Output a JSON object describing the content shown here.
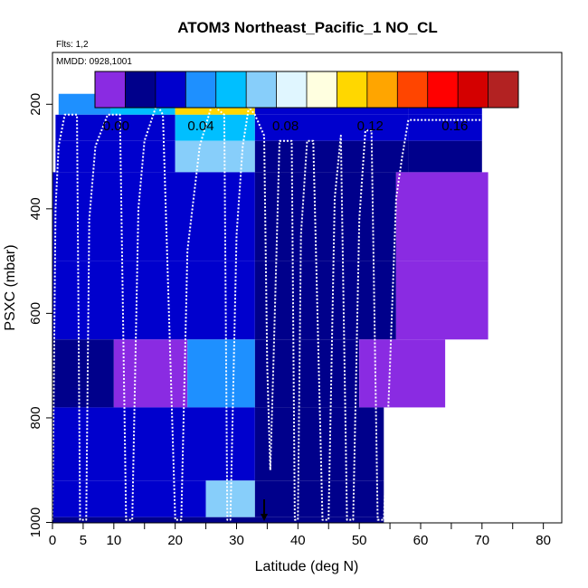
{
  "chart_data": {
    "type": "heatmap",
    "title": "ATOM3 Northeast_Pacific_1 NO_CL",
    "annotations": [
      "Flts: 1,2",
      "MMDD: 0928,1001"
    ],
    "xlabel": "Latitude (deg N)",
    "ylabel": "PSXC (mbar)",
    "xlim": [
      0,
      83
    ],
    "ylim": [
      1000,
      100
    ],
    "x_ticks": [
      0,
      5,
      10,
      20,
      30,
      40,
      50,
      60,
      70,
      80
    ],
    "y_ticks": [
      200,
      400,
      600,
      800,
      1000
    ],
    "colorbar": {
      "range": [
        -0.01,
        0.19
      ],
      "tick_values": [
        0.0,
        0.04,
        0.08,
        0.12,
        0.16
      ],
      "tick_labels": [
        "0.00",
        "0.04",
        "0.08",
        "0.12",
        "0.16"
      ],
      "colors": [
        "#8a2be2",
        "#00008b",
        "#0000cd",
        "#1e90ff",
        "#00bfff",
        "#87cefa",
        "#e0f6ff",
        "#ffffe0",
        "#ffd700",
        "#ffa500",
        "#ff4500",
        "#ff0000",
        "#d40000",
        "#b22222"
      ]
    },
    "cells": [
      [
        9.5,
        33,
        150,
        180,
        0.12
      ],
      [
        1,
        9.5,
        180,
        220,
        0.035
      ],
      [
        9.5,
        20,
        180,
        220,
        0.055
      ],
      [
        20,
        33,
        180,
        220,
        0.11
      ],
      [
        33,
        58,
        180,
        220,
        0.03
      ],
      [
        58,
        70,
        180,
        220,
        0.02
      ],
      [
        0.5,
        20,
        220,
        270,
        0.02
      ],
      [
        20,
        33,
        220,
        270,
        0.05
      ],
      [
        33,
        58,
        220,
        270,
        0.02
      ],
      [
        58,
        70,
        220,
        270,
        0.025
      ],
      [
        0.5,
        20,
        270,
        330,
        0.02
      ],
      [
        20,
        33,
        270,
        330,
        0.065
      ],
      [
        33,
        58,
        270,
        330,
        0.015
      ],
      [
        58,
        70,
        270,
        330,
        0.015
      ],
      [
        0,
        33,
        330,
        500,
        0.02
      ],
      [
        33,
        56,
        330,
        500,
        0.012
      ],
      [
        56,
        71,
        330,
        500,
        0.0
      ],
      [
        0,
        33,
        500,
        650,
        0.022
      ],
      [
        33,
        56,
        500,
        650,
        0.015
      ],
      [
        56,
        71,
        500,
        650,
        0.0
      ],
      [
        0,
        10,
        650,
        780,
        0.01
      ],
      [
        10,
        22,
        650,
        780,
        0.0
      ],
      [
        22,
        33,
        650,
        780,
        0.04
      ],
      [
        33,
        50,
        650,
        780,
        0.012
      ],
      [
        50,
        64,
        650,
        780,
        0.0
      ],
      [
        0,
        33,
        780,
        920,
        0.02
      ],
      [
        33,
        54,
        780,
        920,
        0.015
      ],
      [
        0,
        25,
        920,
        990,
        0.02
      ],
      [
        25,
        33,
        920,
        990,
        0.07
      ],
      [
        33,
        54,
        920,
        990,
        0.018
      ],
      [
        0,
        54,
        990,
        1000,
        0.012
      ]
    ],
    "flight_track": [
      [
        0,
        995
      ],
      [
        0.5,
        400
      ],
      [
        1,
        280
      ],
      [
        2,
        220
      ],
      [
        4,
        220
      ],
      [
        4.5,
        995
      ],
      [
        5.5,
        995
      ],
      [
        6,
        420
      ],
      [
        7,
        280
      ],
      [
        9,
        220
      ],
      [
        11,
        220
      ],
      [
        12,
        995
      ],
      [
        13,
        995
      ],
      [
        14,
        400
      ],
      [
        15,
        270
      ],
      [
        17,
        200
      ],
      [
        18,
        220
      ],
      [
        20,
        995
      ],
      [
        21,
        995
      ],
      [
        22,
        480
      ],
      [
        24,
        280
      ],
      [
        26,
        200
      ],
      [
        27,
        210
      ],
      [
        28,
        220
      ],
      [
        28.5,
        995
      ],
      [
        29,
        995
      ],
      [
        30,
        450
      ],
      [
        31,
        280
      ],
      [
        32,
        205
      ],
      [
        33,
        220
      ],
      [
        34.5,
        260
      ],
      [
        35,
        700
      ],
      [
        35.5,
        900
      ],
      [
        36,
        700
      ],
      [
        37,
        270
      ],
      [
        39,
        270
      ],
      [
        39.5,
        995
      ],
      [
        40,
        995
      ],
      [
        40.5,
        450
      ],
      [
        41.5,
        270
      ],
      [
        42.5,
        270
      ],
      [
        44,
        995
      ],
      [
        45,
        995
      ],
      [
        46,
        380
      ],
      [
        47,
        260
      ],
      [
        48,
        995
      ],
      [
        49,
        995
      ],
      [
        50,
        420
      ],
      [
        51,
        250
      ],
      [
        52,
        250
      ],
      [
        53,
        995
      ],
      [
        54,
        995
      ],
      [
        55,
        700
      ],
      [
        56,
        380
      ],
      [
        57,
        300
      ],
      [
        58,
        230
      ],
      [
        70,
        230
      ]
    ],
    "arrow_x": 34.5
  }
}
